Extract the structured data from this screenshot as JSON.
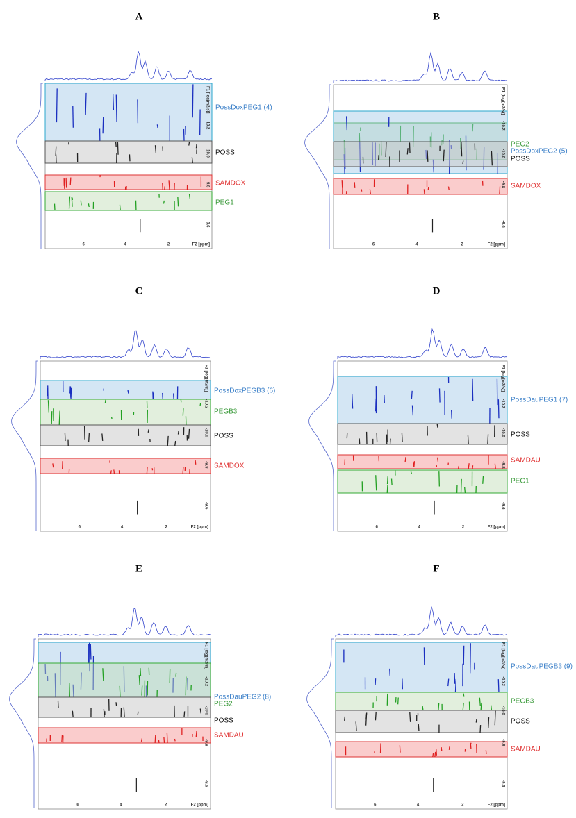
{
  "panels": [
    {
      "label": "A",
      "bands": [
        {
          "name": "PossDoxPEG1 (4)",
          "color": "blue"
        },
        {
          "name": "POSS",
          "color": "gray"
        },
        {
          "name": "SAMDOX",
          "color": "red"
        },
        {
          "name": "PEG1",
          "color": "green"
        }
      ],
      "x_ticks": [
        "6",
        "4",
        "2"
      ],
      "x_axis_label": "F2 [ppm]",
      "y_axis_label": "F1 [log(m2/s)]",
      "y_ticks": [
        "-10.2",
        "-10.0",
        "-9.8",
        "-9.6"
      ]
    },
    {
      "label": "B",
      "bands": [
        {
          "name": "PEG2",
          "color": "green"
        },
        {
          "name": "PossDoxPEG2 (5)",
          "color": "blue"
        },
        {
          "name": "POSS",
          "color": "gray"
        },
        {
          "name": "SAMDOX",
          "color": "red"
        }
      ],
      "x_ticks": [
        "6",
        "4",
        "2"
      ],
      "x_axis_label": "F2 [ppm]",
      "y_axis_label": "F1 [log(m2/s)]",
      "y_ticks": [
        "-10.2",
        "-10.0",
        "-9.8",
        "-9.6"
      ]
    },
    {
      "label": "C",
      "bands": [
        {
          "name": "PossDoxPEGB3 (6)",
          "color": "blue"
        },
        {
          "name": "PEGB3",
          "color": "green"
        },
        {
          "name": "POSS",
          "color": "gray"
        },
        {
          "name": "SAMDOX",
          "color": "red"
        }
      ],
      "x_ticks": [
        "6",
        "4",
        "2"
      ],
      "x_axis_label": "F2 [ppm]",
      "y_axis_label": "F1 [log(m2/s)]",
      "y_ticks": [
        "-10.2",
        "-10.0",
        "-9.8",
        "-9.6"
      ]
    },
    {
      "label": "D",
      "bands": [
        {
          "name": "PossDauPEG1 (7)",
          "color": "blue"
        },
        {
          "name": "POSS",
          "color": "gray"
        },
        {
          "name": "SAMDAU",
          "color": "red"
        },
        {
          "name": "PEG1",
          "color": "green"
        }
      ],
      "x_ticks": [
        "6",
        "4",
        "2"
      ],
      "x_axis_label": "F2 [ppm]",
      "y_axis_label": "F1 [log(m2/s)]",
      "y_ticks": [
        "-10.2",
        "-10.0",
        "-9.8",
        "-9.6"
      ]
    },
    {
      "label": "E",
      "bands": [
        {
          "name": "PossDauPEG2 (8)",
          "color": "blue"
        },
        {
          "name": "PEG2",
          "color": "green"
        },
        {
          "name": "POSS",
          "color": "gray"
        },
        {
          "name": "SAMDAU",
          "color": "red"
        }
      ],
      "x_ticks": [
        "6",
        "4",
        "2"
      ],
      "x_axis_label": "F2 [ppm]",
      "y_axis_label": "F1 [log(m2/s)]",
      "y_ticks": [
        "-10.2",
        "-10.0",
        "-9.8",
        "-9.6"
      ]
    },
    {
      "label": "F",
      "bands": [
        {
          "name": "PossDauPEGB3 (9)",
          "color": "blue"
        },
        {
          "name": "PEGB3",
          "color": "green"
        },
        {
          "name": "POSS",
          "color": "gray"
        },
        {
          "name": "SAMDAU",
          "color": "red"
        }
      ],
      "x_ticks": [
        "6",
        "4",
        "2"
      ],
      "x_axis_label": "F2 [ppm]",
      "y_axis_label": "F1 [log(m2/s)]",
      "y_ticks": [
        "-10.2",
        "-10.0",
        "-9.8",
        "-9.6"
      ]
    }
  ]
}
